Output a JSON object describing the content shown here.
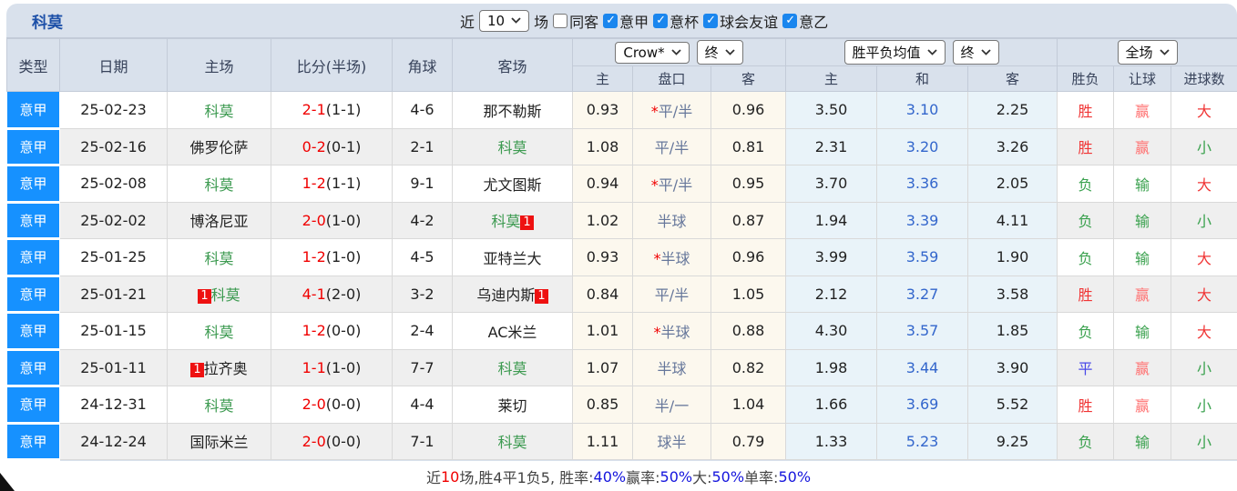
{
  "topbar": {
    "team": "科莫",
    "recent_label": "近",
    "recent_select": "10",
    "games_label": "场",
    "same_venue": {
      "label": "同客",
      "checked": false
    },
    "filters": [
      {
        "label": "意甲",
        "checked": true
      },
      {
        "label": "意杯",
        "checked": true
      },
      {
        "label": "球会友谊",
        "checked": true
      },
      {
        "label": "意乙",
        "checked": true
      }
    ]
  },
  "header": {
    "col_type": "类型",
    "col_date": "日期",
    "col_home": "主场",
    "col_score": "比分(半场)",
    "col_corner": "角球",
    "col_away": "客场",
    "odds_source_select": "Crow*",
    "odds_time_select": "终",
    "avg_select": "胜平负均值",
    "avg_time_select": "终",
    "scope_select": "全场",
    "sub_odds_home": "主",
    "sub_handicap": "盘口",
    "sub_odds_away": "客",
    "sub_avg_home": "主",
    "sub_avg_draw": "和",
    "sub_avg_away": "客",
    "col_result": "胜负",
    "col_handicap_result": "让球",
    "col_goals": "进球数"
  },
  "colors": {
    "type_cell_bg": "#1691ff",
    "team_highlight": "#3c9a50",
    "score_red": "#f00000",
    "win_red": "#f03535",
    "lose_green": "#3aa14e",
    "draw_blue": "#4848e8",
    "avg_draw_blue": "#3366cc",
    "badge_red": "#ee1111"
  },
  "rows": [
    {
      "type": "意甲",
      "date": "25-02-23",
      "home": {
        "name": "科莫",
        "green": true,
        "badge_before": "",
        "badge_after": ""
      },
      "score": {
        "ft": "2-1",
        "ht": "(1-1)"
      },
      "corner": "4-6",
      "away": {
        "name": "那不勒斯",
        "green": false,
        "badge_before": "",
        "badge_after": ""
      },
      "odds": {
        "home": "0.93",
        "star": true,
        "handicap": "平/半",
        "away": "0.96"
      },
      "avg": {
        "home": "3.50",
        "draw": "3.10",
        "away": "2.25"
      },
      "result": {
        "text": "胜",
        "color": "red"
      },
      "handicap_result": {
        "text": "赢",
        "color": "red2"
      },
      "goals": {
        "text": "大",
        "color": "red"
      }
    },
    {
      "type": "意甲",
      "date": "25-02-16",
      "home": {
        "name": "佛罗伦萨",
        "green": false,
        "badge_before": "",
        "badge_after": ""
      },
      "score": {
        "ft": "0-2",
        "ht": "(0-1)"
      },
      "corner": "2-1",
      "away": {
        "name": "科莫",
        "green": true,
        "badge_before": "",
        "badge_after": ""
      },
      "odds": {
        "home": "1.08",
        "star": false,
        "handicap": "平/半",
        "away": "0.81"
      },
      "avg": {
        "home": "2.31",
        "draw": "3.20",
        "away": "3.26"
      },
      "result": {
        "text": "胜",
        "color": "red"
      },
      "handicap_result": {
        "text": "赢",
        "color": "red2"
      },
      "goals": {
        "text": "小",
        "color": "green"
      }
    },
    {
      "type": "意甲",
      "date": "25-02-08",
      "home": {
        "name": "科莫",
        "green": true,
        "badge_before": "",
        "badge_after": ""
      },
      "score": {
        "ft": "1-2",
        "ht": "(1-1)"
      },
      "corner": "9-1",
      "away": {
        "name": "尤文图斯",
        "green": false,
        "badge_before": "",
        "badge_after": ""
      },
      "odds": {
        "home": "0.94",
        "star": true,
        "handicap": "平/半",
        "away": "0.95"
      },
      "avg": {
        "home": "3.70",
        "draw": "3.36",
        "away": "2.05"
      },
      "result": {
        "text": "负",
        "color": "green"
      },
      "handicap_result": {
        "text": "输",
        "color": "green"
      },
      "goals": {
        "text": "大",
        "color": "red"
      }
    },
    {
      "type": "意甲",
      "date": "25-02-02",
      "home": {
        "name": "博洛尼亚",
        "green": false,
        "badge_before": "",
        "badge_after": ""
      },
      "score": {
        "ft": "2-0",
        "ht": "(1-0)"
      },
      "corner": "4-2",
      "away": {
        "name": "科莫",
        "green": true,
        "badge_before": "",
        "badge_after": "1"
      },
      "odds": {
        "home": "1.02",
        "star": false,
        "handicap": "半球",
        "away": "0.87"
      },
      "avg": {
        "home": "1.94",
        "draw": "3.39",
        "away": "4.11"
      },
      "result": {
        "text": "负",
        "color": "green"
      },
      "handicap_result": {
        "text": "输",
        "color": "green"
      },
      "goals": {
        "text": "小",
        "color": "green"
      }
    },
    {
      "type": "意甲",
      "date": "25-01-25",
      "home": {
        "name": "科莫",
        "green": true,
        "badge_before": "",
        "badge_after": ""
      },
      "score": {
        "ft": "1-2",
        "ht": "(1-0)"
      },
      "corner": "4-5",
      "away": {
        "name": "亚特兰大",
        "green": false,
        "badge_before": "",
        "badge_after": ""
      },
      "odds": {
        "home": "0.93",
        "star": true,
        "handicap": "半球",
        "away": "0.96"
      },
      "avg": {
        "home": "3.99",
        "draw": "3.59",
        "away": "1.90"
      },
      "result": {
        "text": "负",
        "color": "green"
      },
      "handicap_result": {
        "text": "输",
        "color": "green"
      },
      "goals": {
        "text": "大",
        "color": "red"
      }
    },
    {
      "type": "意甲",
      "date": "25-01-21",
      "home": {
        "name": "科莫",
        "green": true,
        "badge_before": "1",
        "badge_after": ""
      },
      "score": {
        "ft": "4-1",
        "ht": "(2-0)"
      },
      "corner": "3-2",
      "away": {
        "name": "乌迪内斯",
        "green": false,
        "badge_before": "",
        "badge_after": "1"
      },
      "odds": {
        "home": "0.84",
        "star": false,
        "handicap": "平/半",
        "away": "1.05"
      },
      "avg": {
        "home": "2.12",
        "draw": "3.27",
        "away": "3.58"
      },
      "result": {
        "text": "胜",
        "color": "red"
      },
      "handicap_result": {
        "text": "赢",
        "color": "red2"
      },
      "goals": {
        "text": "大",
        "color": "red"
      }
    },
    {
      "type": "意甲",
      "date": "25-01-15",
      "home": {
        "name": "科莫",
        "green": true,
        "badge_before": "",
        "badge_after": ""
      },
      "score": {
        "ft": "1-2",
        "ht": "(0-0)"
      },
      "corner": "2-4",
      "away": {
        "name": "AC米兰",
        "green": false,
        "badge_before": "",
        "badge_after": ""
      },
      "odds": {
        "home": "1.01",
        "star": true,
        "handicap": "半球",
        "away": "0.88"
      },
      "avg": {
        "home": "4.30",
        "draw": "3.57",
        "away": "1.85"
      },
      "result": {
        "text": "负",
        "color": "green"
      },
      "handicap_result": {
        "text": "输",
        "color": "green"
      },
      "goals": {
        "text": "大",
        "color": "red"
      }
    },
    {
      "type": "意甲",
      "date": "25-01-11",
      "home": {
        "name": "拉齐奥",
        "green": false,
        "badge_before": "1",
        "badge_after": ""
      },
      "score": {
        "ft": "1-1",
        "ht": "(1-0)"
      },
      "corner": "7-7",
      "away": {
        "name": "科莫",
        "green": true,
        "badge_before": "",
        "badge_after": ""
      },
      "odds": {
        "home": "1.07",
        "star": false,
        "handicap": "半球",
        "away": "0.82"
      },
      "avg": {
        "home": "1.98",
        "draw": "3.44",
        "away": "3.90"
      },
      "result": {
        "text": "平",
        "color": "blue"
      },
      "handicap_result": {
        "text": "赢",
        "color": "red2"
      },
      "goals": {
        "text": "小",
        "color": "green"
      }
    },
    {
      "type": "意甲",
      "date": "24-12-31",
      "home": {
        "name": "科莫",
        "green": true,
        "badge_before": "",
        "badge_after": ""
      },
      "score": {
        "ft": "2-0",
        "ht": "(0-0)"
      },
      "corner": "4-4",
      "away": {
        "name": "莱切",
        "green": false,
        "badge_before": "",
        "badge_after": ""
      },
      "odds": {
        "home": "0.85",
        "star": false,
        "handicap": "半/一",
        "away": "1.04"
      },
      "avg": {
        "home": "1.66",
        "draw": "3.69",
        "away": "5.52"
      },
      "result": {
        "text": "胜",
        "color": "red"
      },
      "handicap_result": {
        "text": "赢",
        "color": "red2"
      },
      "goals": {
        "text": "小",
        "color": "green"
      }
    },
    {
      "type": "意甲",
      "date": "24-12-24",
      "home": {
        "name": "国际米兰",
        "green": false,
        "badge_before": "",
        "badge_after": ""
      },
      "score": {
        "ft": "2-0",
        "ht": "(0-0)"
      },
      "corner": "7-1",
      "away": {
        "name": "科莫",
        "green": true,
        "badge_before": "",
        "badge_after": ""
      },
      "odds": {
        "home": "1.11",
        "star": false,
        "handicap": "球半",
        "away": "0.79"
      },
      "avg": {
        "home": "1.33",
        "draw": "5.23",
        "away": "9.25"
      },
      "result": {
        "text": "负",
        "color": "green"
      },
      "handicap_result": {
        "text": "输",
        "color": "green"
      },
      "goals": {
        "text": "小",
        "color": "green"
      }
    }
  ],
  "footer": {
    "segments": [
      {
        "text": "近",
        "color": "dark"
      },
      {
        "text": "10",
        "color": "red"
      },
      {
        "text": "场,胜4平1负5, 胜率:",
        "color": "dark"
      },
      {
        "text": "40%",
        "color": "blue"
      },
      {
        "text": " 赢率:",
        "color": "dark"
      },
      {
        "text": "50%",
        "color": "blue"
      },
      {
        "text": " 大:",
        "color": "dark"
      },
      {
        "text": "50%",
        "color": "blue"
      },
      {
        "text": " 单率:",
        "color": "dark"
      },
      {
        "text": "50%",
        "color": "blue"
      }
    ]
  }
}
